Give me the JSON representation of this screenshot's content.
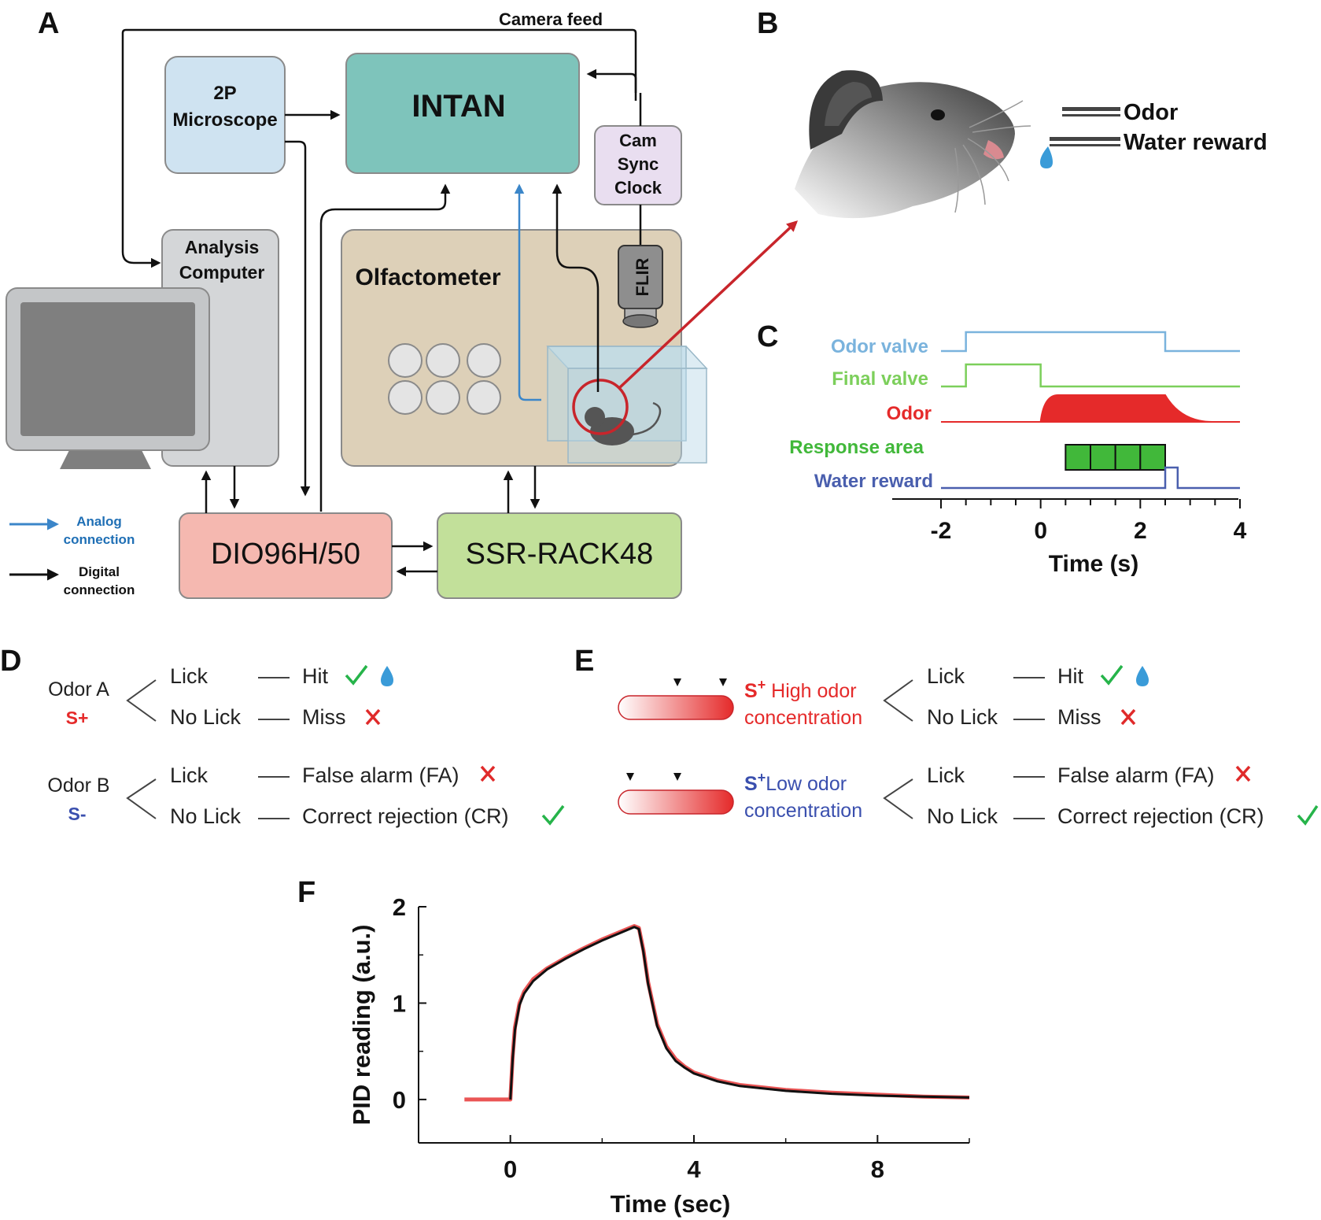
{
  "panels": {
    "A": "A",
    "B": "B",
    "C": "C",
    "D": "D",
    "E": "E",
    "F": "F"
  },
  "colors": {
    "intan": "#7ec4bb",
    "microscope": "#cfe3f1",
    "computer": "#d4d6d8",
    "olfactometer": "#ddd0b8",
    "cam_sync": "#e9def0",
    "dio": "#f5b8b0",
    "ssr": "#c2e09a",
    "analog": "#3b86c9",
    "digital": "#111111",
    "odor_valve": "#7ab3dd",
    "final_valve": "#7ccf5b",
    "odor": "#e52a2a",
    "response": "#41b83a",
    "water": "#4a5fae",
    "splus": "#e52a2a",
    "sminus": "#3a4fae",
    "check": "#26b44a",
    "cross": "#e02a2a",
    "drop": "#3a9bd8"
  },
  "panel_a": {
    "camera_feed": "Camera feed",
    "microscope": [
      "2P",
      "Microscope"
    ],
    "intan": "INTAN",
    "cam_sync": [
      "Cam",
      "Sync",
      "Clock"
    ],
    "analysis_computer": [
      "Analysis",
      "Computer"
    ],
    "olfactometer": "Olfactometer",
    "flir": "FLIR",
    "dio": "DIO96H/50",
    "ssr": "SSR-RACK48",
    "legend_analog": [
      "Analog",
      "connection"
    ],
    "legend_digital": [
      "Digital",
      "connection"
    ]
  },
  "panel_b": {
    "odor": "Odor",
    "water_reward": "Water reward"
  },
  "panel_c": {
    "rows": [
      {
        "label": "Odor valve",
        "color": "#7ab3dd",
        "on": -1.5,
        "off": 2.5
      },
      {
        "label": "Final valve",
        "color": "#7ccf5b",
        "on": -1.5,
        "off": 0
      },
      {
        "label": "Odor",
        "color": "#e52a2a",
        "on": 0,
        "off": 2.5
      },
      {
        "label": "Response area",
        "color": "#41b83a",
        "on": 0.5,
        "off": 2.5,
        "segments": 4
      },
      {
        "label": "Water reward",
        "color": "#4a5fae",
        "on": 2.5,
        "off": 2.75
      }
    ],
    "xticks": [
      "-2",
      "0",
      "2",
      "4"
    ],
    "xrange": [
      -2,
      4
    ],
    "xlabel": "Time (s)"
  },
  "panel_d": {
    "groups": [
      {
        "odor": "Odor A",
        "sign": "S+",
        "sign_color": "#e52a2a",
        "branches": [
          {
            "action": "Lick",
            "outcome": "Hit",
            "marks": [
              "check",
              "drop"
            ]
          },
          {
            "action": "No Lick",
            "outcome": "Miss",
            "marks": [
              "cross"
            ]
          }
        ]
      },
      {
        "odor": "Odor B",
        "sign": "S-",
        "sign_color": "#3a4fae",
        "branches": [
          {
            "action": "Lick",
            "outcome": "False alarm (FA)",
            "marks": [
              "cross"
            ]
          },
          {
            "action": "No Lick",
            "outcome": "Correct rejection (CR)",
            "marks": [
              "check"
            ]
          }
        ]
      }
    ]
  },
  "panel_e": {
    "groups": [
      {
        "sup": "S",
        "plus": "+",
        "desc_line1": " High odor",
        "desc_line2": "concentration",
        "color": "#e52a2a",
        "branches": [
          {
            "action": "Lick",
            "outcome": "Hit",
            "marks": [
              "check",
              "drop"
            ]
          },
          {
            "action": "No Lick",
            "outcome": "Miss",
            "marks": [
              "cross"
            ]
          }
        ]
      },
      {
        "sup": "S",
        "plus": "+",
        "desc_line1": "Low odor",
        "desc_line2": "concentration",
        "color": "#3a4fae",
        "branches": [
          {
            "action": "Lick",
            "outcome": "False alarm (FA)",
            "marks": [
              "cross"
            ]
          },
          {
            "action": "No Lick",
            "outcome": "Correct rejection (CR)",
            "marks": [
              "check"
            ]
          }
        ]
      }
    ]
  },
  "chart_data": {
    "type": "line",
    "xlabel": "Time (sec)",
    "ylabel": "PID reading (a.u.)",
    "xlim": [
      -2.0,
      10
    ],
    "ylim": [
      -0.45,
      2.0
    ],
    "xticks": [
      0,
      4,
      8
    ],
    "yticks": [
      0,
      1,
      2
    ],
    "series": [
      {
        "color": "#e52a2a",
        "x": [
          -1,
          -0.5,
          0,
          0.05,
          0.1,
          0.2,
          0.3,
          0.5,
          0.8,
          1.2,
          1.6,
          2.0,
          2.4,
          2.7,
          2.8,
          2.9,
          3.0,
          3.2,
          3.4,
          3.6,
          3.8,
          4.0,
          4.5,
          5,
          6,
          7,
          8,
          9,
          10
        ],
        "y": [
          0,
          0,
          0,
          0.45,
          0.75,
          1.0,
          1.12,
          1.25,
          1.36,
          1.47,
          1.57,
          1.66,
          1.74,
          1.8,
          1.78,
          1.55,
          1.22,
          0.78,
          0.55,
          0.42,
          0.34,
          0.28,
          0.2,
          0.15,
          0.1,
          0.07,
          0.05,
          0.03,
          0.02
        ]
      },
      {
        "color": "#111111",
        "x": [
          0,
          0.05,
          0.1,
          0.2,
          0.3,
          0.5,
          0.8,
          1.2,
          1.6,
          2.0,
          2.4,
          2.7,
          2.8,
          2.9,
          3.0,
          3.2,
          3.4,
          3.6,
          3.8,
          4.0,
          4.5,
          5,
          6,
          7,
          8,
          9,
          10
        ],
        "y": [
          0,
          0.42,
          0.72,
          0.98,
          1.1,
          1.23,
          1.35,
          1.46,
          1.56,
          1.65,
          1.73,
          1.79,
          1.77,
          1.53,
          1.2,
          0.76,
          0.53,
          0.4,
          0.33,
          0.27,
          0.19,
          0.14,
          0.09,
          0.06,
          0.04,
          0.03,
          0.02
        ]
      }
    ]
  }
}
